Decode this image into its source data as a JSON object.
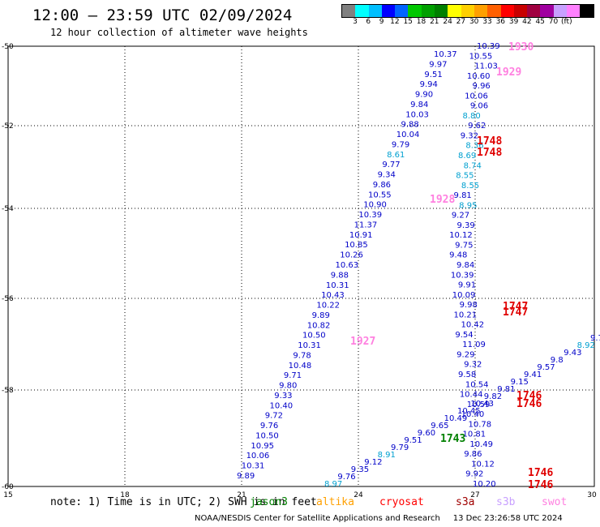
{
  "header": {
    "title": "12:00 – 23:59 UTC 02/09/2024",
    "subtitle": "12 hour collection of altimeter wave heights"
  },
  "colorbar": {
    "colors": [
      "#808080",
      "#00ffff",
      "#00bfff",
      "#0000ff",
      "#0064ff",
      "#00c800",
      "#00a000",
      "#008000",
      "#ffff00",
      "#ffd000",
      "#ffa000",
      "#ff6000",
      "#ff0000",
      "#c80000",
      "#a00040",
      "#a000a0",
      "#c8a0ff",
      "#ff80ff",
      "#000000"
    ],
    "labels": [
      "3",
      "6",
      "9",
      "12",
      "15",
      "18",
      "21",
      "24",
      "27",
      "30",
      "33",
      "36",
      "39",
      "42",
      "45",
      "70",
      "(ft)"
    ]
  },
  "axes": {
    "lon_ticks": [
      "15",
      "18",
      "21",
      "24",
      "27",
      "30"
    ],
    "lat_ticks": [
      "-50",
      "-52",
      "-54",
      "-56",
      "-58",
      "-60"
    ]
  },
  "wave_heights": {
    "track_a": [
      "10.37",
      "9.97",
      "9.51",
      "9.94",
      "9.90",
      "9.84",
      "10.03",
      "9.88",
      "10.04",
      "9.79",
      "8.61",
      "9.77",
      "9.34",
      "9.86",
      "10.55",
      "10.90",
      "10.39",
      "11.37",
      "10.91",
      "10.85",
      "10.26",
      "10.63",
      "9.88",
      "10.31",
      "10.43",
      "10.22",
      "9.89",
      "10.82",
      "10.50",
      "10.31",
      "9.78",
      "10.48",
      "9.71",
      "9.80",
      "9.33",
      "10.40",
      "9.72",
      "9.76",
      "10.50",
      "10.95",
      "10.06",
      "10.31",
      "9.89"
    ],
    "track_b": [
      "10.39",
      "10.55",
      "11.03",
      "10.60",
      "9.96",
      "10.06",
      "9.06",
      "8.80",
      "9.62",
      "9.32",
      "8.36",
      "8.69",
      "8.74",
      "8.55",
      "8.55",
      "9.81",
      "8.95",
      "9.27",
      "9.39",
      "10.12",
      "9.75",
      "9.48",
      "9.84",
      "10.39",
      "9.91",
      "10.09",
      "9.98",
      "10.21",
      "10.42",
      "9.54",
      "11.09",
      "9.29",
      "9.32",
      "9.58",
      "10.54",
      "10.44",
      "10.59",
      "10.40",
      "10.78",
      "10.81",
      "10.49",
      "9.86",
      "10.12",
      "9.92",
      "10.20"
    ],
    "track_c": [
      "8.97",
      "9.76",
      "9.35",
      "9.12",
      "8.91",
      "9.79",
      "9.51",
      "9.60",
      "9.65",
      "10.49",
      "10.45",
      "10.43",
      "9.82",
      "9.81",
      "9.15",
      "9.41",
      "9.57",
      "9.8",
      "9.43",
      "8.92",
      "9.7"
    ]
  },
  "pass_times": [
    {
      "label": "1930",
      "color": "#ff80e0"
    },
    {
      "label": "1929",
      "color": "#ff80e0"
    },
    {
      "label": "1748",
      "color": "#e00000"
    },
    {
      "label": "1748",
      "color": "#e00000"
    },
    {
      "label": "1928",
      "color": "#ff80e0"
    },
    {
      "label": "1747",
      "color": "#e00000"
    },
    {
      "label": "1747",
      "color": "#e00000"
    },
    {
      "label": "1927",
      "color": "#ff80e0"
    },
    {
      "label": "1746",
      "color": "#e00000"
    },
    {
      "label": "1746",
      "color": "#e00000"
    },
    {
      "label": "1743",
      "color": "#008000"
    },
    {
      "label": "1746",
      "color": "#e00000"
    },
    {
      "label": "1746",
      "color": "#e00000"
    }
  ],
  "footer": {
    "note": "note: 1) Time is in UTC; 2) SWH is in feet",
    "satellites": [
      {
        "name": "jason3",
        "color": "#008000"
      },
      {
        "name": "altika",
        "color": "#ffa000"
      },
      {
        "name": "cryosat",
        "color": "#ff0000"
      },
      {
        "name": "s3a",
        "color": "#a00000"
      },
      {
        "name": "s3b",
        "color": "#c8a0ff"
      },
      {
        "name": "swot",
        "color": "#ff80e0"
      }
    ],
    "credit": "NOAA/NESDIS Center for Satellite Applications and Research",
    "timestamp": "13 Dec 23:26:58 UTC 2024"
  }
}
